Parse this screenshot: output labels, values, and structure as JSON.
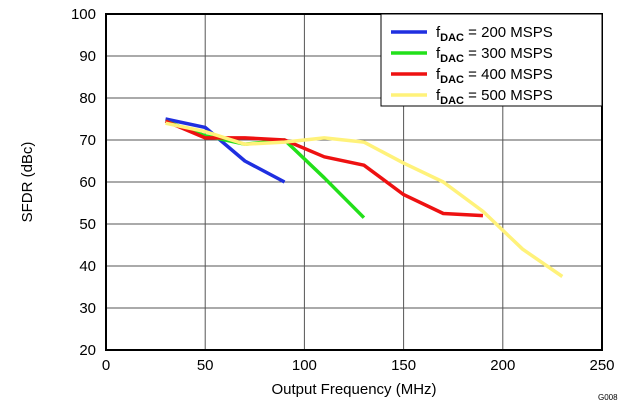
{
  "chart_data": {
    "type": "line",
    "xlabel": "Output Frequency (MHz)",
    "ylabel": "SFDR (dBc)",
    "xlim": [
      0,
      250
    ],
    "ylim": [
      20,
      100
    ],
    "x_ticks": [
      0,
      50,
      100,
      150,
      200,
      250
    ],
    "y_ticks": [
      20,
      30,
      40,
      50,
      60,
      70,
      80,
      90,
      100
    ],
    "grid": true,
    "legend_position": "top-right",
    "figure_id": "G008",
    "series": [
      {
        "name_main": "f",
        "name_sub": "DAC",
        "name_rest": " = 200 MSPS",
        "color": "#1f2fe0",
        "x": [
          30,
          50,
          70,
          90
        ],
        "y": [
          75,
          73,
          65,
          60
        ]
      },
      {
        "name_main": "f",
        "name_sub": "DAC",
        "name_rest": " = 300 MSPS",
        "color": "#22e01a",
        "x": [
          30,
          50,
          70,
          90,
          110,
          130
        ],
        "y": [
          74.5,
          71,
          69,
          70,
          61,
          51.5
        ]
      },
      {
        "name_main": "f",
        "name_sub": "DAC",
        "name_rest": " = 400 MSPS",
        "color": "#ee1111",
        "x": [
          30,
          50,
          70,
          90,
          110,
          130,
          150,
          170,
          190
        ],
        "y": [
          74.5,
          70.5,
          70.5,
          70,
          66,
          64,
          57,
          52.5,
          52
        ]
      },
      {
        "name_main": "f",
        "name_sub": "DAC",
        "name_rest": " = 500 MSPS",
        "color": "#fff27a",
        "x": [
          30,
          50,
          70,
          90,
          110,
          130,
          150,
          170,
          190,
          210,
          230
        ],
        "y": [
          74,
          72,
          69,
          69.5,
          70.5,
          69.5,
          64.5,
          60,
          53,
          44,
          37.5
        ]
      }
    ]
  }
}
